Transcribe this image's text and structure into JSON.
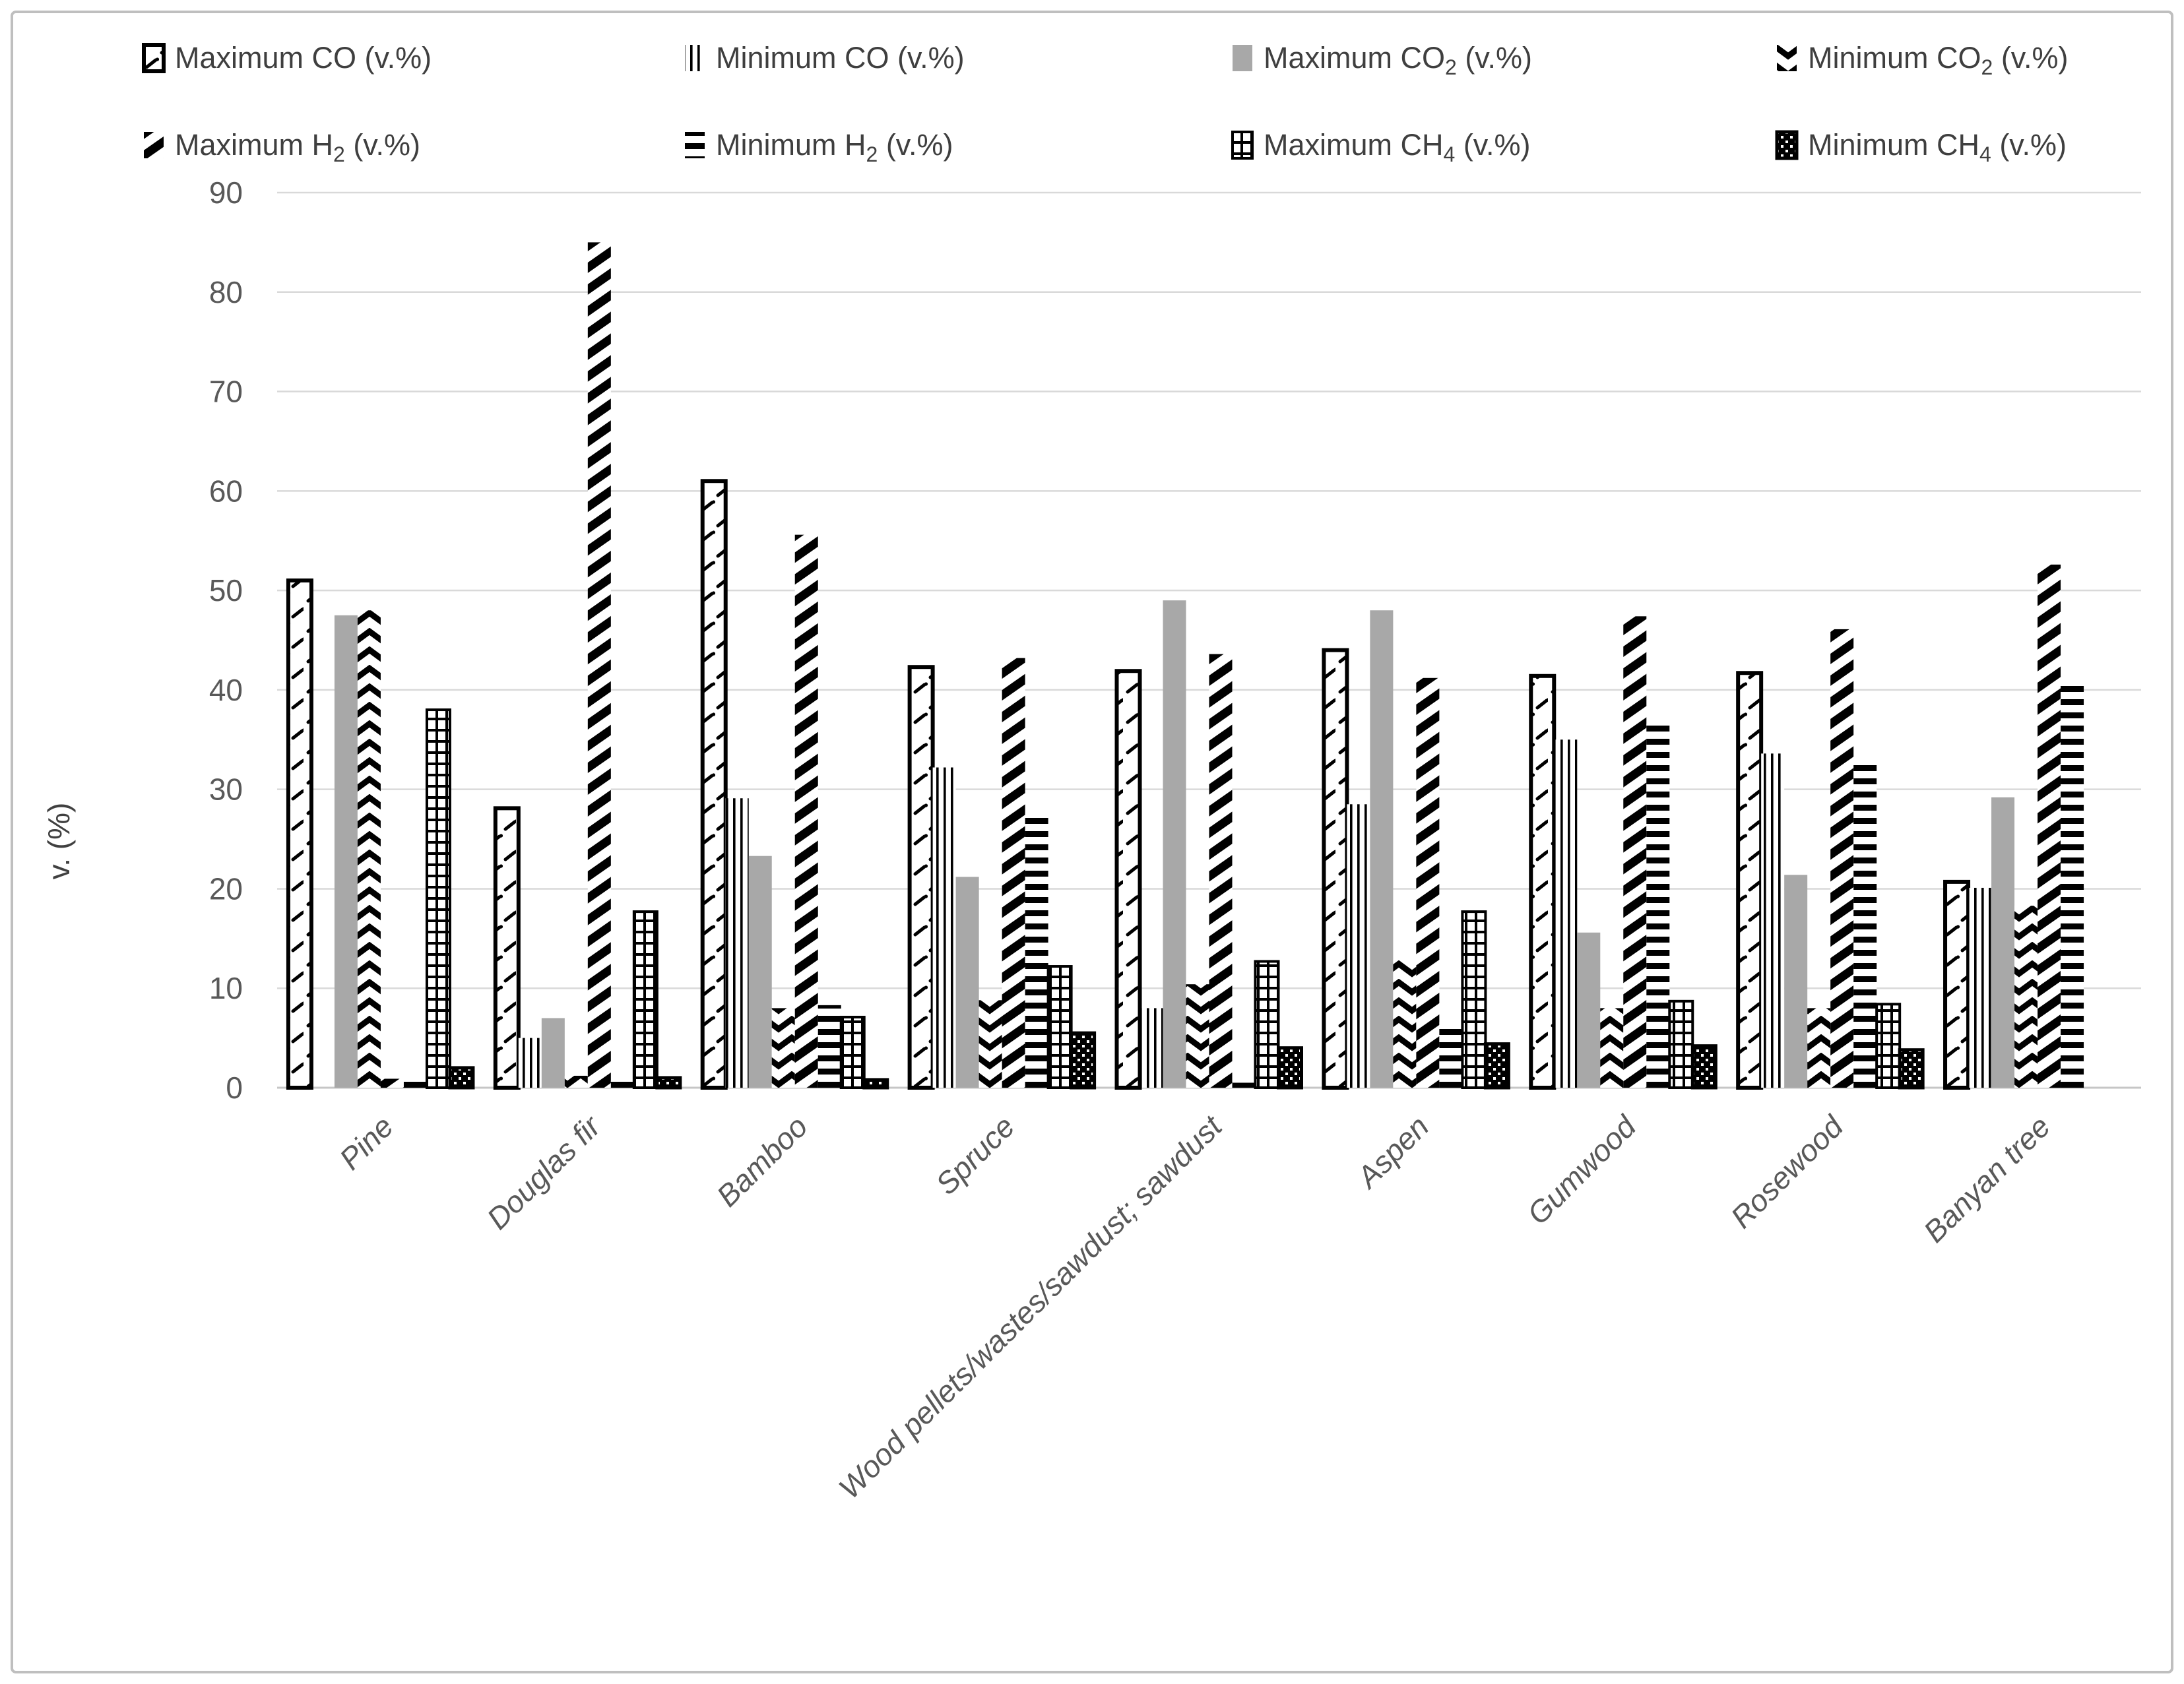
{
  "chart_data": {
    "type": "bar",
    "title": "",
    "xlabel": "",
    "ylabel": "v. (%)",
    "ylim": [
      0,
      90
    ],
    "ytick_step": 10,
    "grid": true,
    "legend_position": "top",
    "categories": [
      "Pine",
      "Douglas fir",
      "Bamboo",
      "Spruce",
      "Wood pellets/wastes/sawdust; sawdust",
      "Aspen",
      "Gumwood",
      "Rosewood",
      "Banyan tree"
    ],
    "series": [
      {
        "name": "Maximum CO (v.%)",
        "label_parts": [
          "Maximum CO",
          "",
          " (v.%)"
        ],
        "pattern": "bordered-diagonal-dash",
        "values": [
          51.0,
          28.1,
          61.0,
          42.3,
          41.9,
          44.0,
          41.4,
          41.7,
          20.7
        ]
      },
      {
        "name": "Minimum CO (v.%)",
        "label_parts": [
          "Minimum CO",
          "",
          " (v.%)"
        ],
        "pattern": "vertical-stripes",
        "values": [
          0,
          5.0,
          29.1,
          32.2,
          8.0,
          28.5,
          35.0,
          33.6,
          20.1
        ]
      },
      {
        "name": "Maximum CO2 (v.%)",
        "label_parts": [
          "Maximum CO",
          "2",
          " (v.%)"
        ],
        "pattern": "solid-gray",
        "values": [
          47.5,
          7.0,
          23.3,
          21.2,
          49.0,
          48.0,
          15.6,
          21.4,
          29.2
        ]
      },
      {
        "name": "Minimum CO2 (v.%)",
        "label_parts": [
          "Minimum CO",
          "2",
          " (v.%)"
        ],
        "pattern": "herringbone-chevron",
        "values": [
          48.0,
          1.2,
          8.0,
          8.8,
          10.4,
          12.9,
          8.0,
          8.0,
          18.3
        ]
      },
      {
        "name": "Maximum H2 (v.%)",
        "label_parts": [
          "Maximum H",
          "2",
          " (v.%)"
        ],
        "pattern": "diagonal-stripes",
        "values": [
          0.9,
          85.0,
          55.6,
          43.2,
          43.6,
          41.2,
          47.4,
          46.1,
          52.6
        ]
      },
      {
        "name": "Minimum H2 (v.%)",
        "label_parts": [
          "Minimum H",
          "2",
          " (v.%)"
        ],
        "pattern": "horizontal-stripes",
        "values": [
          0.7,
          0.7,
          8.3,
          27.6,
          0.5,
          6.6,
          36.6,
          32.5,
          40.7
        ]
      },
      {
        "name": "Maximum CH4 (v.%)",
        "label_parts": [
          "Maximum CH",
          "4",
          " (v.%)"
        ],
        "pattern": "open-grid",
        "values": [
          38.0,
          17.7,
          7.1,
          12.2,
          12.7,
          17.7,
          8.7,
          8.4,
          0
        ]
      },
      {
        "name": "Minimum CH4 (v.%)",
        "label_parts": [
          "Minimum CH",
          "4",
          " (v.%)"
        ],
        "pattern": "checker-dots",
        "values": [
          2.0,
          1.0,
          0.8,
          5.5,
          4.0,
          4.4,
          4.2,
          3.8,
          0
        ]
      }
    ],
    "colors": {
      "gray_fill": "#a8a8a8",
      "pattern_ink": "#000000",
      "gridline": "#d9d9d9",
      "tick_text": "#595959",
      "legend_text": "#3f3f3f"
    }
  }
}
